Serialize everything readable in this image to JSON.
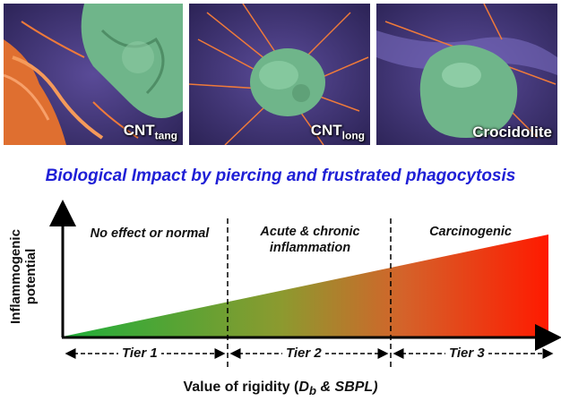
{
  "panels": [
    {
      "label": "CNT",
      "label_sub": "tang"
    },
    {
      "label": "CNT",
      "label_sub": "long"
    },
    {
      "label": "Crocidolite",
      "label_sub": ""
    }
  ],
  "headline": "Biological Impact by piercing and frustrated phagocytosis",
  "regions": {
    "r1": "No effect or normal",
    "r2_line1": "Acute & chronic",
    "r2_line2": "inflammation",
    "r3": "Carcinogenic"
  },
  "y_axis_label_line1": "Inflammogenic",
  "y_axis_label_line2": "potential",
  "tiers": [
    "Tier 1",
    "Tier 2",
    "Tier 3"
  ],
  "x_axis_label_prefix": "Value of rigidity (",
  "x_axis_label_db": "D",
  "x_axis_label_db_sub": "b",
  "x_axis_label_suffix": " & SBPL)",
  "colors": {
    "headline": "#1f1fd6",
    "gradient_start": "#1fae3a",
    "gradient_mid": "#b98a2a",
    "gradient_end": "#ff1a00",
    "micro_background": "#4b3d86",
    "cell_green": "#6fb58a",
    "fiber_orange": "#ef7a3a"
  }
}
